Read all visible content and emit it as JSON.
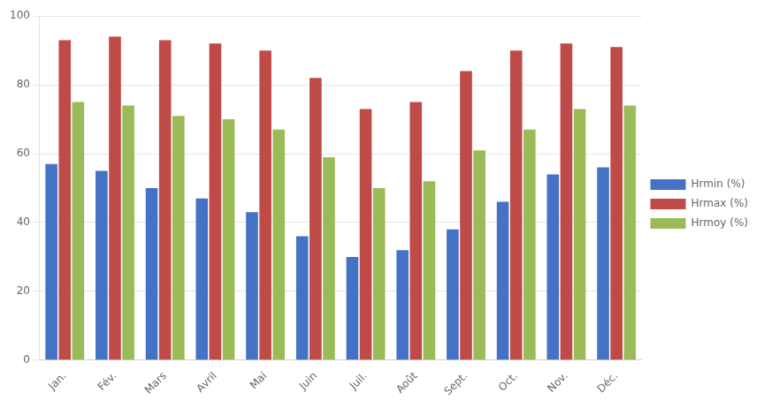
{
  "chart_data": {
    "type": "bar",
    "categories": [
      "Jan.",
      "Fév.",
      "Mars",
      "Avril",
      "Mai",
      "Juin",
      "Juil.",
      "Août",
      "Sept.",
      "Oct.",
      "Nov.",
      "Déc."
    ],
    "series": [
      {
        "name": "Hrmin (%)",
        "color": "#4472C4",
        "values": [
          57,
          55,
          50,
          47,
          43,
          36,
          30,
          32,
          38,
          46,
          54,
          56
        ]
      },
      {
        "name": "Hrmax (%)",
        "color": "#BE4B48",
        "values": [
          93,
          94,
          93,
          92,
          90,
          82,
          73,
          75,
          84,
          90,
          92,
          91
        ]
      },
      {
        "name": "Hrmoy (%)",
        "color": "#9BBB59",
        "values": [
          75,
          74,
          71,
          70,
          67,
          59,
          50,
          52,
          61,
          67,
          73,
          74
        ]
      }
    ],
    "ylim": [
      0,
      100
    ],
    "yticks": [
      0,
      20,
      40,
      60,
      80,
      100
    ],
    "grid": true,
    "legend": "right"
  }
}
